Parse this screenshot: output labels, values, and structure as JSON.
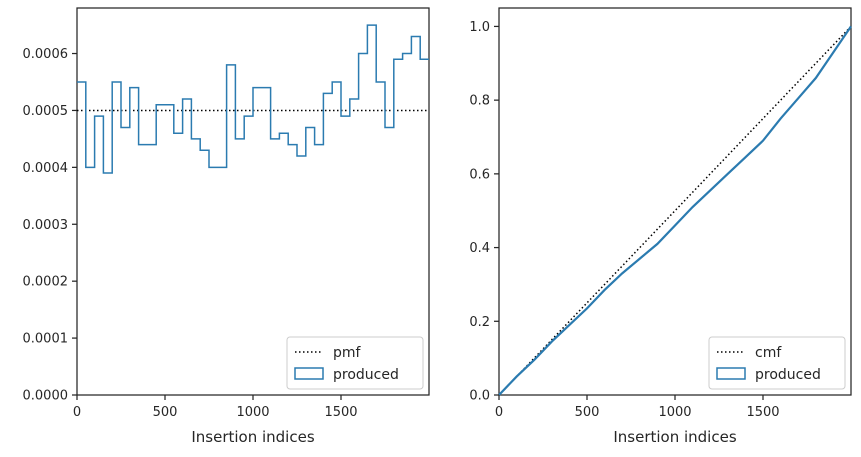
{
  "chart_data": [
    {
      "type": "histogram-step",
      "xlabel": "Insertion indices",
      "ylabel": "",
      "xlim": [
        0,
        2000
      ],
      "ylim": [
        0,
        0.00068
      ],
      "xticks": [
        0,
        500,
        1000,
        1500
      ],
      "xtick_labels": [
        "0",
        "500",
        "1000",
        "1500"
      ],
      "yticks": [
        0,
        0.0001,
        0.0002,
        0.0003,
        0.0004,
        0.0005,
        0.0006
      ],
      "ytick_labels": [
        "0.0000",
        "0.0001",
        "0.0002",
        "0.0003",
        "0.0004",
        "0.0005",
        "0.0006"
      ],
      "legend_position": "lower-right",
      "grid": false,
      "reference": {
        "name": "pmf",
        "style": "dotted",
        "color": "#000000",
        "value": 0.0005
      },
      "series": [
        {
          "name": "produced",
          "color": "#2b7bb0",
          "bin_width": 50,
          "bin_starts": [
            0,
            50,
            100,
            150,
            200,
            250,
            300,
            350,
            400,
            450,
            500,
            550,
            600,
            650,
            700,
            750,
            800,
            850,
            900,
            950,
            1000,
            1050,
            1100,
            1150,
            1200,
            1250,
            1300,
            1350,
            1400,
            1450,
            1500,
            1550,
            1600,
            1650,
            1700,
            1750,
            1800,
            1850,
            1900,
            1950
          ],
          "values": [
            0.00055,
            0.0004,
            0.00049,
            0.00039,
            0.00055,
            0.00047,
            0.00054,
            0.00044,
            0.00044,
            0.00051,
            0.00051,
            0.00046,
            0.00052,
            0.00045,
            0.00043,
            0.0004,
            0.0004,
            0.00058,
            0.00045,
            0.00049,
            0.00054,
            0.00054,
            0.00045,
            0.00046,
            0.00044,
            0.00042,
            0.00047,
            0.00044,
            0.00053,
            0.00055,
            0.00049,
            0.00052,
            0.0006,
            0.00065,
            0.00055,
            0.00047,
            0.00059,
            0.0006,
            0.00063,
            0.00059
          ]
        }
      ]
    },
    {
      "type": "line",
      "xlabel": "Insertion indices",
      "ylabel": "",
      "xlim": [
        0,
        2000
      ],
      "ylim": [
        0,
        1.05
      ],
      "xticks": [
        0,
        500,
        1000,
        1500
      ],
      "xtick_labels": [
        "0",
        "500",
        "1000",
        "1500"
      ],
      "yticks": [
        0,
        0.2,
        0.4,
        0.6,
        0.8,
        1.0
      ],
      "ytick_labels": [
        "0.0",
        "0.2",
        "0.4",
        "0.6",
        "0.8",
        "1.0"
      ],
      "legend_position": "lower-right",
      "grid": false,
      "reference": {
        "name": "cmf",
        "style": "dotted",
        "color": "#000000",
        "x": [
          0,
          2000
        ],
        "y": [
          0,
          1.0
        ]
      },
      "series": [
        {
          "name": "produced",
          "color": "#2b7bb0",
          "x": [
            0,
            100,
            200,
            300,
            400,
            500,
            600,
            700,
            800,
            850,
            900,
            1000,
            1100,
            1200,
            1300,
            1400,
            1500,
            1600,
            1700,
            1800,
            1900,
            2000
          ],
          "y": [
            0,
            0.05,
            0.095,
            0.145,
            0.19,
            0.235,
            0.285,
            0.33,
            0.37,
            0.39,
            0.41,
            0.46,
            0.51,
            0.555,
            0.6,
            0.645,
            0.69,
            0.75,
            0.805,
            0.86,
            0.93,
            1.0
          ]
        }
      ]
    }
  ]
}
